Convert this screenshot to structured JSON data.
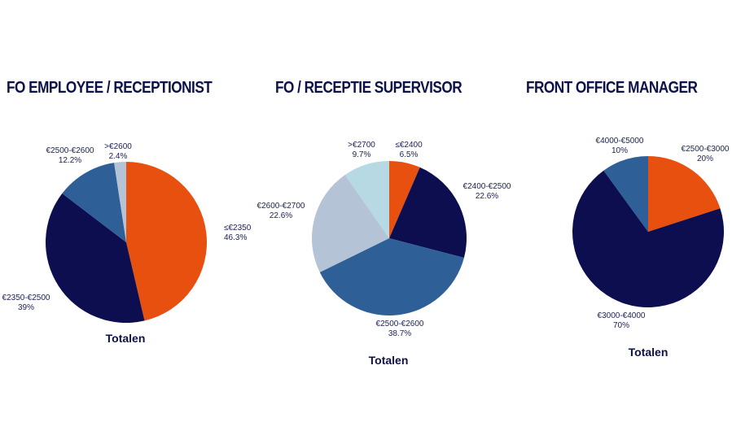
{
  "chart_data": [
    {
      "type": "pie",
      "title": "FO EMPLOYEE / RECEPTIONIST",
      "caption": "Totalen",
      "slices": [
        {
          "label": "≤€2350",
          "value": 46.3,
          "value_label": "46.3%",
          "color": "#e7500f"
        },
        {
          "label": "€2350-€2500",
          "value": 39,
          "value_label": "39%",
          "color": "#0c0e4f"
        },
        {
          "label": "€2500-€2600",
          "value": 12.2,
          "value_label": "12.2%",
          "color": "#2e5f97"
        },
        {
          "label": ">€2600",
          "value": 2.4,
          "value_label": "2.4%",
          "color": "#b4c3d6"
        }
      ]
    },
    {
      "type": "pie",
      "title": "FO / RECEPTIE SUPERVISOR",
      "caption": "Totalen",
      "slices": [
        {
          "label": "≤€2400",
          "value": 6.5,
          "value_label": "6.5%",
          "color": "#e7500f"
        },
        {
          "label": "€2400-€2500",
          "value": 22.6,
          "value_label": "22.6%",
          "color": "#0c0e4f"
        },
        {
          "label": "€2500-€2600",
          "value": 38.7,
          "value_label": "38.7%",
          "color": "#2e5f97"
        },
        {
          "label": "€2600-€2700",
          "value": 22.6,
          "value_label": "22.6%",
          "color": "#b4c3d6"
        },
        {
          "label": ">€2700",
          "value": 9.7,
          "value_label": "9.7%",
          "color": "#b6d9e3"
        }
      ]
    },
    {
      "type": "pie",
      "title": "FRONT OFFICE MANAGER",
      "caption": "Totalen",
      "slices": [
        {
          "label": "€2500-€3000",
          "value": 20,
          "value_label": "20%",
          "color": "#e7500f"
        },
        {
          "label": "€3000-€4000",
          "value": 70,
          "value_label": "70%",
          "color": "#0c0e4f"
        },
        {
          "label": "€4000-€5000",
          "value": 10,
          "value_label": "10%",
          "color": "#2e5f97"
        }
      ]
    }
  ]
}
